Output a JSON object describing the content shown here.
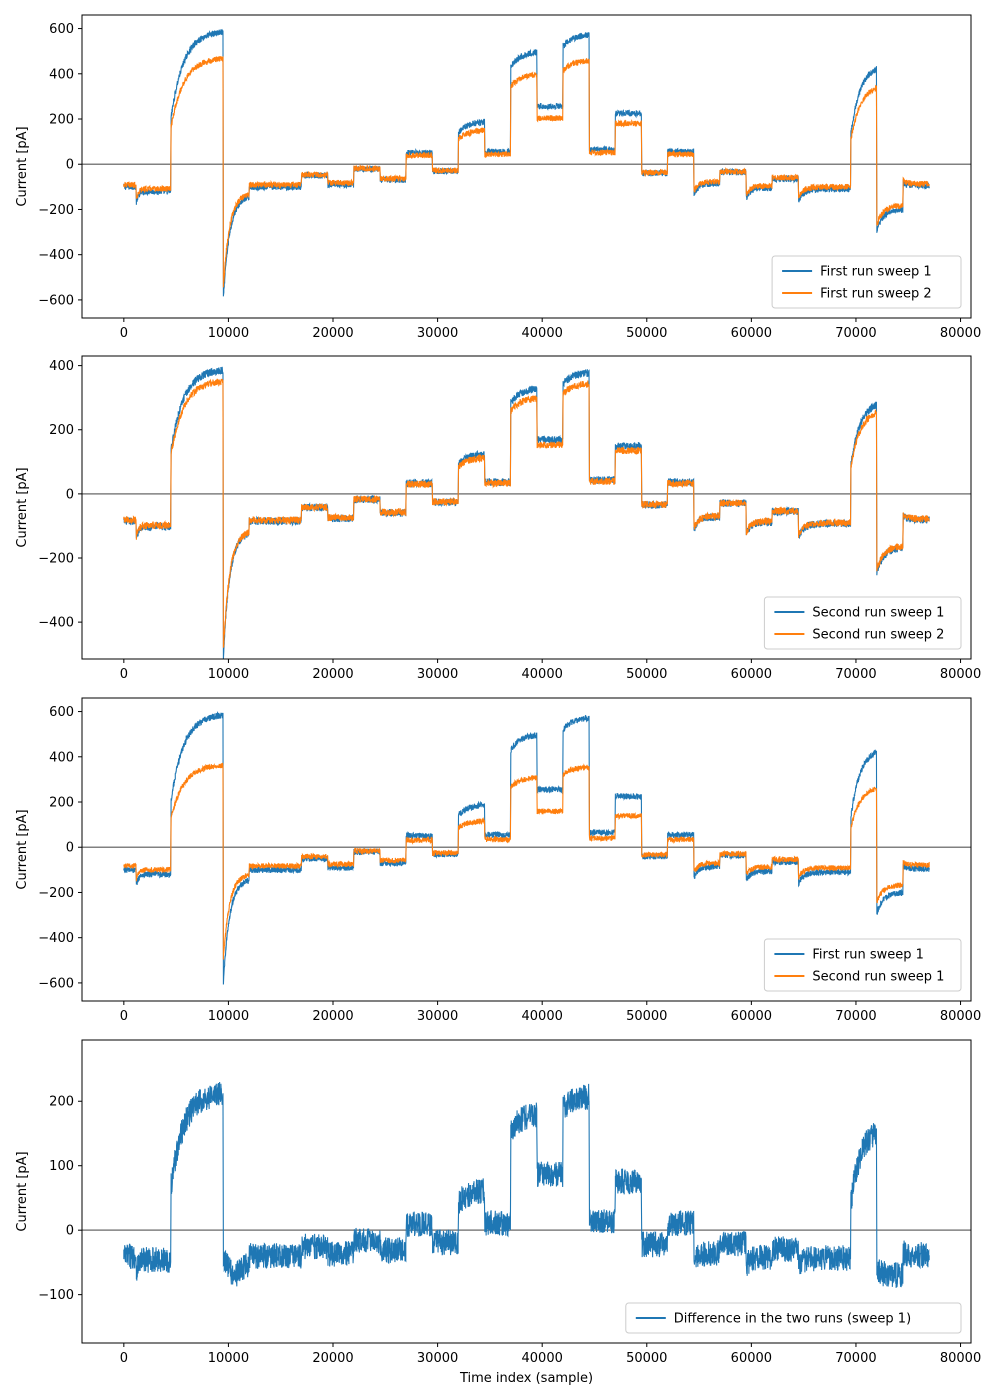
{
  "chart_data": [
    {
      "type": "line",
      "ylabel": "Current [pA]",
      "xlabel": "",
      "xlim": [
        -4000,
        81000
      ],
      "ylim": [
        -680,
        660
      ],
      "xticks": [
        0,
        10000,
        20000,
        30000,
        40000,
        50000,
        60000,
        70000,
        80000
      ],
      "yticks": [
        -600,
        -400,
        -200,
        0,
        200,
        400,
        600
      ],
      "hline": 0,
      "legend_position": "lower-right",
      "series": [
        {
          "name": "First run sweep 1",
          "color": "#1f77b4",
          "scale": 1.0,
          "noise": 14
        },
        {
          "name": "First run sweep 2",
          "color": "#ff7f0e",
          "scale": 0.8,
          "noise": 13
        }
      ]
    },
    {
      "type": "line",
      "ylabel": "Current [pA]",
      "xlabel": "",
      "xlim": [
        -4000,
        81000
      ],
      "ylim": [
        -515,
        430
      ],
      "xticks": [
        0,
        10000,
        20000,
        30000,
        40000,
        50000,
        60000,
        70000,
        80000
      ],
      "yticks": [
        -400,
        -200,
        0,
        200,
        400
      ],
      "hline": 0,
      "legend_position": "lower-right",
      "series": [
        {
          "name": "Second run sweep 1",
          "color": "#1f77b4",
          "scale": 0.66,
          "noise": 12
        },
        {
          "name": "Second run sweep 2",
          "color": "#ff7f0e",
          "scale": 0.6,
          "noise": 11
        }
      ]
    },
    {
      "type": "line",
      "ylabel": "Current [pA]",
      "xlabel": "",
      "xlim": [
        -4000,
        81000
      ],
      "ylim": [
        -680,
        660
      ],
      "xticks": [
        0,
        10000,
        20000,
        30000,
        40000,
        50000,
        60000,
        70000,
        80000
      ],
      "yticks": [
        -600,
        -400,
        -200,
        0,
        200,
        400,
        600
      ],
      "hline": 0,
      "legend_position": "lower-right",
      "series": [
        {
          "name": "First run sweep 1",
          "color": "#1f77b4",
          "scale": 1.0,
          "noise": 14
        },
        {
          "name": "Second run sweep 1",
          "color": "#ff7f0e",
          "scale": 0.62,
          "noise": 12
        }
      ]
    },
    {
      "type": "line",
      "ylabel": "Current [pA]",
      "xlabel": "Time index (sample)",
      "xlim": [
        -4000,
        81000
      ],
      "ylim": [
        -175,
        295
      ],
      "xticks": [
        0,
        10000,
        20000,
        30000,
        40000,
        50000,
        60000,
        70000,
        80000
      ],
      "yticks": [
        -100,
        0,
        100,
        200
      ],
      "hline": 0,
      "legend_position": "lower-right",
      "series": [
        {
          "name": "Difference in the two runs (sweep 1)",
          "color": "#1f77b4",
          "scale": 0.38,
          "noise": 20,
          "difference": true
        }
      ]
    }
  ],
  "signal_model": {
    "x_end": 77000,
    "segments": [
      {
        "t0": 0,
        "t1": 1200,
        "v": -100
      },
      {
        "t0": 1200,
        "t1": 4500,
        "v": -120,
        "start": -170
      },
      {
        "t0": 4500,
        "t1": 9500,
        "v": 590,
        "start": 200,
        "tau": 1200
      },
      {
        "t0": 9500,
        "t1": 12000,
        "v": -140,
        "start": -610,
        "tau": 600
      },
      {
        "t0": 12000,
        "t1": 17000,
        "v": -100
      },
      {
        "t0": 17000,
        "t1": 19500,
        "v": -50
      },
      {
        "t0": 19500,
        "t1": 22000,
        "v": -90
      },
      {
        "t0": 22000,
        "t1": 24500,
        "v": -20
      },
      {
        "t0": 24500,
        "t1": 27000,
        "v": -70
      },
      {
        "t0": 27000,
        "t1": 29500,
        "v": 50
      },
      {
        "t0": 29500,
        "t1": 32000,
        "v": -30
      },
      {
        "t0": 32000,
        "t1": 34500,
        "v": 190,
        "start": 140,
        "tau": 900
      },
      {
        "t0": 34500,
        "t1": 37000,
        "v": 55
      },
      {
        "t0": 37000,
        "t1": 39500,
        "v": 500,
        "start": 430,
        "tau": 900
      },
      {
        "t0": 39500,
        "t1": 42000,
        "v": 255
      },
      {
        "t0": 42000,
        "t1": 44500,
        "v": 575,
        "start": 520,
        "tau": 900
      },
      {
        "t0": 44500,
        "t1": 47000,
        "v": 65
      },
      {
        "t0": 47000,
        "t1": 49500,
        "v": 225
      },
      {
        "t0": 49500,
        "t1": 52000,
        "v": -40
      },
      {
        "t0": 52000,
        "t1": 54500,
        "v": 55
      },
      {
        "t0": 54500,
        "t1": 57000,
        "v": -85,
        "start": -135,
        "tau": 400
      },
      {
        "t0": 57000,
        "t1": 59500,
        "v": -35
      },
      {
        "t0": 59500,
        "t1": 62000,
        "v": -105,
        "start": -150,
        "tau": 400
      },
      {
        "t0": 62000,
        "t1": 64500,
        "v": -65
      },
      {
        "t0": 64500,
        "t1": 69500,
        "v": -110,
        "start": -160,
        "tau": 500
      },
      {
        "t0": 69500,
        "t1": 72000,
        "v": 440,
        "start": 130,
        "tau": 900
      },
      {
        "t0": 72000,
        "t1": 74500,
        "v": -200,
        "start": -290,
        "tau": 600
      },
      {
        "t0": 74500,
        "t1": 77000,
        "v": -95,
        "start": -80,
        "tau": 400
      }
    ]
  }
}
